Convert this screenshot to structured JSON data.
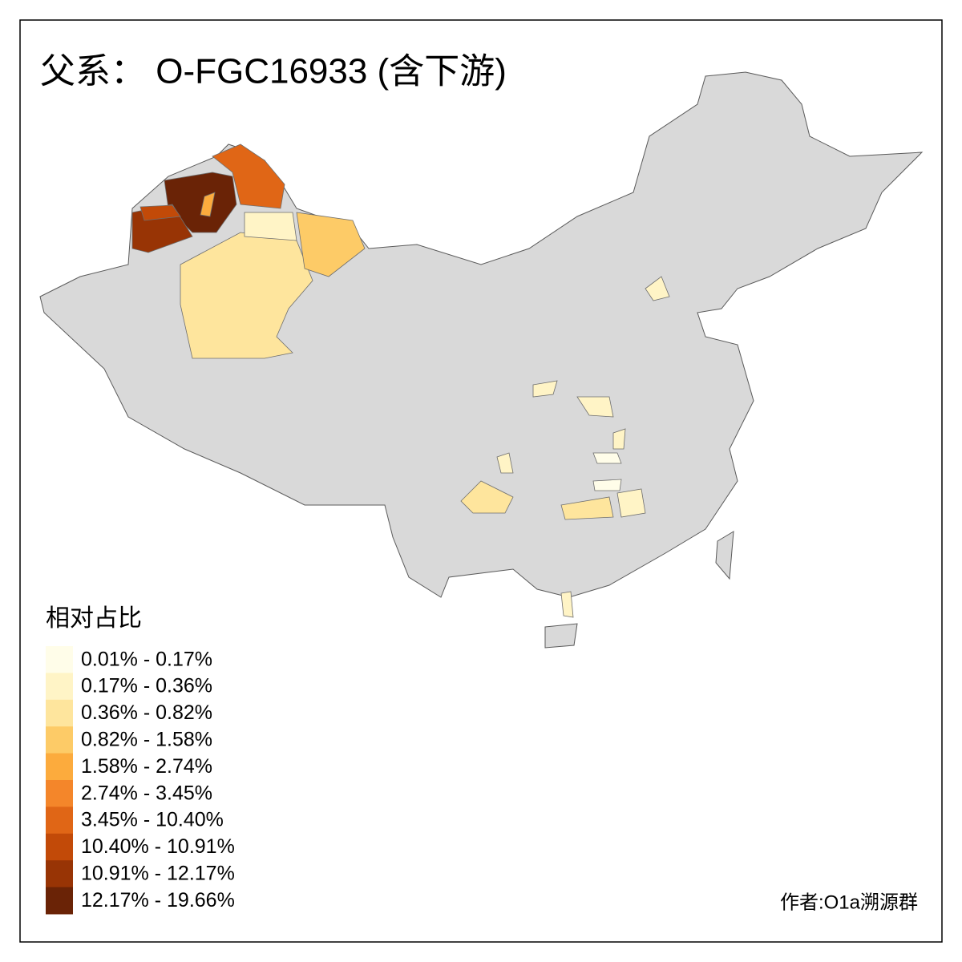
{
  "title": "父系： O-FGC16933 (含下游)",
  "legend": {
    "title": "相对占比",
    "items": [
      {
        "label": "0.01% - 0.17%",
        "color": "#fffde9"
      },
      {
        "label": "0.17% - 0.36%",
        "color": "#fff4c6"
      },
      {
        "label": "0.36% - 0.82%",
        "color": "#fee59d"
      },
      {
        "label": "0.82% - 1.58%",
        "color": "#fdcb67"
      },
      {
        "label": "1.58% - 2.74%",
        "color": "#fcab3d"
      },
      {
        "label": "2.74% - 3.45%",
        "color": "#f4862a"
      },
      {
        "label": "3.45% - 10.40%",
        "color": "#e06616"
      },
      {
        "label": "10.40% - 10.91%",
        "color": "#c24a08"
      },
      {
        "label": "10.91% - 12.17%",
        "color": "#983405"
      },
      {
        "label": "12.17% - 19.66%",
        "color": "#6a2306"
      }
    ]
  },
  "credit": "作者:O1a溯源群"
}
